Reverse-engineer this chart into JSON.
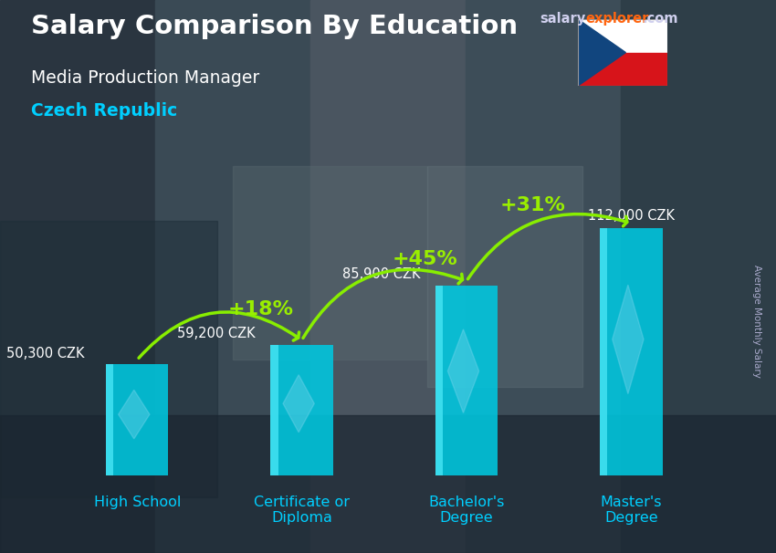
{
  "title_line1": "Salary Comparison By Education",
  "subtitle": "Media Production Manager",
  "country": "Czech Republic",
  "ylabel": "Average Monthly Salary",
  "categories": [
    "High School",
    "Certificate or\nDiploma",
    "Bachelor's\nDegree",
    "Master's\nDegree"
  ],
  "values": [
    50300,
    59200,
    85900,
    112000
  ],
  "value_labels": [
    "50,300 CZK",
    "59,200 CZK",
    "85,900 CZK",
    "112,000 CZK"
  ],
  "pct_changes": [
    "+18%",
    "+45%",
    "+31%"
  ],
  "bar_color_main": "#00c8e0",
  "bar_color_light": "#40e0f0",
  "bar_color_dark": "#0090b0",
  "bg_color": "#3a4a5a",
  "title_color": "#ffffff",
  "subtitle_color": "#ffffff",
  "country_color": "#00cfff",
  "value_label_color": "#ffffff",
  "pct_color": "#99ee00",
  "xlabel_color": "#00cfff",
  "ylim": [
    0,
    145000
  ],
  "figsize": [
    8.5,
    6.06
  ],
  "dpi": 100,
  "arrow_color": "#88ee00"
}
